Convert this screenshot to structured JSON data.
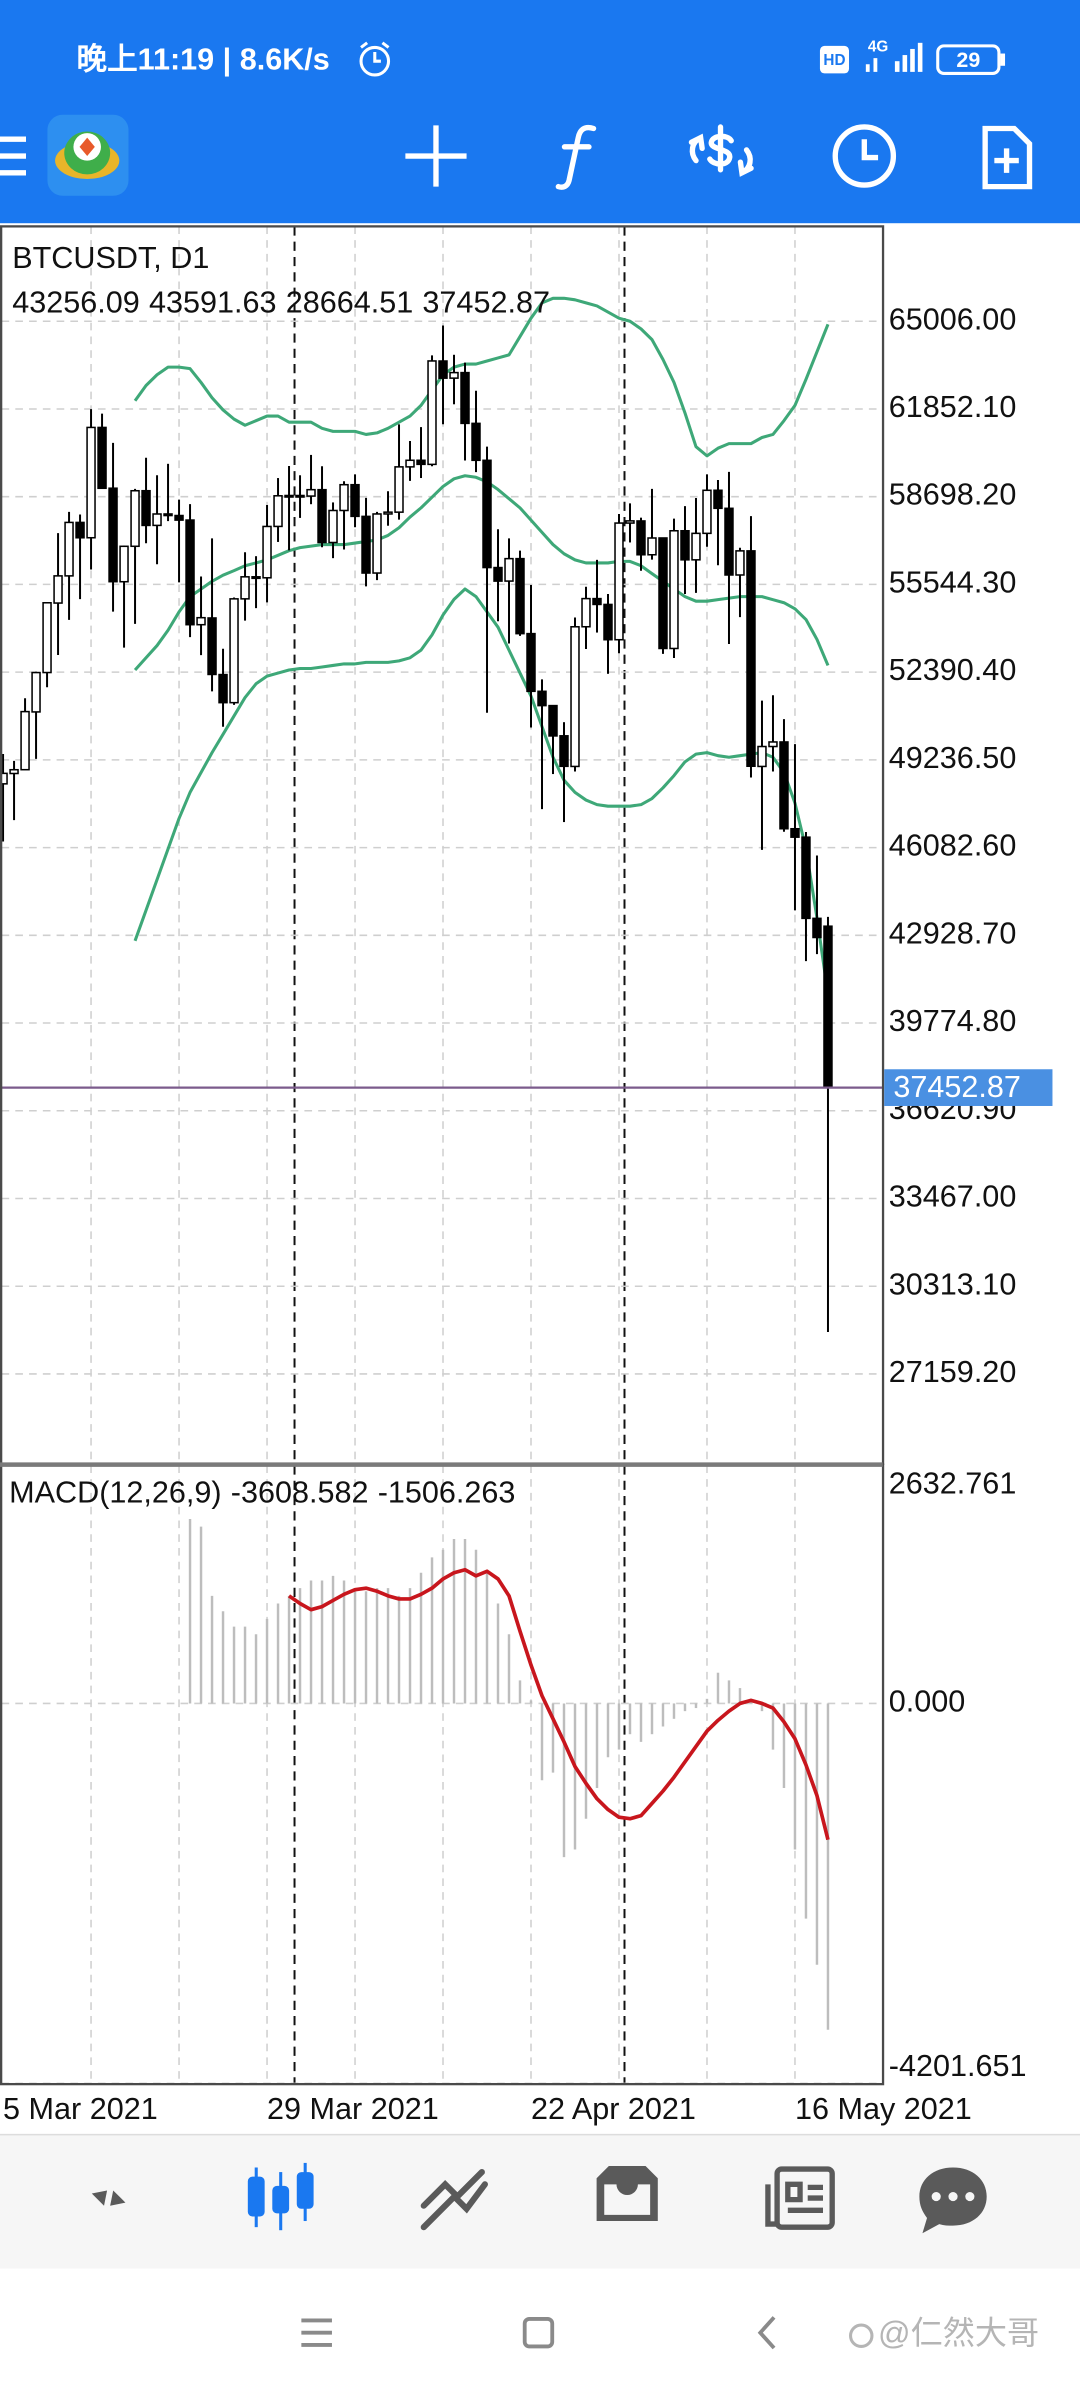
{
  "status_bar": {
    "time_speed": "晚上11:19 | 8.6K/s",
    "hd": "HD",
    "network": "4G",
    "battery": "29"
  },
  "watermark": "@仁然大哥",
  "chart_data": [
    {
      "type": "candlestick",
      "title": "BTCUSDT, D1",
      "categories": [
        "5 Mar 2021",
        null,
        null,
        null,
        null,
        null,
        null,
        null,
        null,
        null,
        null,
        null,
        null,
        null,
        null,
        null,
        null,
        null,
        null,
        null,
        null,
        null,
        null,
        null,
        "29 Mar 2021",
        null,
        null,
        null,
        null,
        null,
        null,
        null,
        null,
        null,
        null,
        null,
        null,
        null,
        null,
        null,
        null,
        null,
        null,
        null,
        null,
        null,
        null,
        null,
        "22 Apr 2021",
        null,
        null,
        null,
        null,
        null,
        null,
        null,
        null,
        null,
        null,
        null,
        null,
        null,
        null,
        null,
        null,
        null,
        null,
        null,
        null,
        null,
        null,
        null,
        "16 May 2021",
        null,
        null,
        null
      ],
      "open": [
        48374,
        48746,
        48883,
        50960,
        52376,
        54874,
        55851,
        57773,
        57222,
        61188,
        59003,
        55641,
        56915,
        58913,
        57666,
        58077,
        58021,
        57858,
        54096,
        54338,
        52303,
        51293,
        55025,
        55818,
        55782,
        57629,
        58730,
        58741,
        58720,
        58950,
        57051,
        58202,
        59129,
        57990,
        55953,
        58077,
        58142,
        59770,
        60007,
        59860,
        63576,
        62960,
        63159,
        61334,
        60006,
        56150,
        55664,
        56471,
        53775,
        51701,
        51187,
        50101,
        49000,
        54022,
        55034,
        54824,
        53556,
        57750,
        57826,
        56610,
        57214,
        53241,
        57473,
        56428,
        57380,
        58929,
        58280,
        55883,
        56750,
        49000,
        49716,
        49880,
        46760,
        46457,
        43538,
        43256.09
      ],
      "high": [
        49448,
        49200,
        51450,
        52402,
        54900,
        57387,
        58150,
        58058,
        61844,
        61683,
        60633,
        56938,
        58981,
        60100,
        59468,
        59880,
        58592,
        58430,
        55830,
        57200,
        53230,
        55073,
        56700,
        56559,
        58400,
        59368,
        59800,
        59468,
        60200,
        59791,
        58492,
        59251,
        59500,
        58655,
        58153,
        58894,
        61300,
        60700,
        61200,
        63777,
        64854,
        63800,
        63520,
        62506,
        60499,
        57526,
        57200,
        56757,
        55521,
        52130,
        51200,
        50591,
        54356,
        55460,
        56428,
        55200,
        58075,
        58458,
        57944,
        58981,
        57214,
        57911,
        58360,
        58650,
        59500,
        59300,
        59592,
        56862,
        58000,
        51367,
        51560,
        50700,
        49800,
        46643,
        45800,
        43591.63
      ],
      "low": [
        46300,
        47070,
        48882,
        49274,
        51845,
        53005,
        54269,
        55013,
        56079,
        59000,
        54568,
        53271,
        54124,
        57023,
        56270,
        57820,
        55617,
        53650,
        53000,
        51700,
        50427,
        51214,
        54242,
        54691,
        54900,
        57071,
        56769,
        57935,
        58428,
        56880,
        56488,
        56800,
        57600,
        55473,
        55700,
        57654,
        57872,
        59266,
        59369,
        59791,
        61301,
        62020,
        60000,
        59580,
        50931,
        54221,
        53420,
        53696,
        50400,
        47464,
        48726,
        47000,
        48817,
        53222,
        53813,
        52330,
        53068,
        57052,
        56035,
        56435,
        53046,
        52900,
        55200,
        55241,
        56900,
        56235,
        53400,
        54370,
        48600,
        46000,
        48819,
        46650,
        43825,
        42001,
        42250,
        28664.51
      ],
      "close": [
        48751,
        48882,
        50971,
        52375,
        54884,
        55851,
        57773,
        57221,
        61188,
        59000,
        55642,
        56914,
        58912,
        57665,
        58076,
        58020,
        57856,
        54096,
        54348,
        52307,
        51293,
        55025,
        55817,
        55778,
        57628,
        58730,
        58741,
        58720,
        58950,
        57051,
        58202,
        59129,
        57991,
        55953,
        58077,
        58142,
        59770,
        60007,
        59861,
        63578,
        62959,
        63159,
        61334,
        60006,
        56150,
        55663,
        56471,
        53774,
        51701,
        51187,
        50097,
        49004,
        54021,
        55034,
        54824,
        53556,
        57750,
        57828,
        56610,
        57213,
        53241,
        57473,
        56428,
        57380,
        58928,
        58280,
        55883,
        56750,
        49007,
        49716,
        49880,
        46760,
        46457,
        43538,
        42850,
        37452.87
      ],
      "color_up": "#ffffff",
      "color_down": "#000000",
      "wick_color": "#000000",
      "overlays": [
        {
          "color": "#3ea878",
          "values": [
            null,
            null,
            null,
            null,
            null,
            null,
            null,
            null,
            null,
            null,
            null,
            null,
            62147,
            62696,
            63081,
            63356,
            63356,
            63301,
            62806,
            62256,
            61816,
            61486,
            61266,
            61431,
            61596,
            61596,
            61376,
            61376,
            61376,
            61156,
            61046,
            61046,
            61046,
            60936,
            60991,
            61156,
            61376,
            61596,
            61981,
            62531,
            63081,
            63356,
            63466,
            63466,
            63576,
            63686,
            63796,
            64456,
            65116,
            65666,
            65831,
            65831,
            65776,
            65666,
            65556,
            65336,
            65116,
            65006,
            64731,
            64346,
            63631,
            62806,
            61706,
            60496,
            60166,
            60441,
            60606,
            60606,
            60606,
            60826,
            60936,
            61431,
            61981,
            62916,
            63906,
            64896
          ]
        },
        {
          "color": "#3ea878",
          "values": [
            null,
            null,
            null,
            null,
            null,
            null,
            null,
            null,
            null,
            null,
            null,
            null,
            52466,
            52906,
            53346,
            53896,
            54556,
            55106,
            55381,
            55656,
            55876,
            56041,
            56216,
            56316,
            56426,
            56591,
            56756,
            56866,
            56921,
            56976,
            56976,
            56976,
            57031,
            57086,
            57141,
            57306,
            57581,
            57966,
            58296,
            58681,
            59066,
            59341,
            59451,
            59396,
            59231,
            58956,
            58626,
            58296,
            57856,
            57416,
            56976,
            56646,
            56426,
            56316,
            56316,
            56316,
            56371,
            56371,
            56216,
            55931,
            55656,
            55381,
            55106,
            54941,
            54941,
            54996,
            55051,
            55106,
            55106,
            55106,
            54996,
            54886,
            54666,
            54281,
            53566,
            52631
          ]
        },
        {
          "color": "#3ea878",
          "values": [
            null,
            null,
            null,
            null,
            null,
            null,
            null,
            null,
            null,
            null,
            null,
            null,
            42731,
            43831,
            44931,
            46031,
            47131,
            48066,
            48781,
            49496,
            50156,
            50816,
            51476,
            51971,
            52246,
            52356,
            52466,
            52521,
            52521,
            52576,
            52631,
            52686,
            52686,
            52741,
            52741,
            52741,
            52796,
            52906,
            53181,
            53731,
            54446,
            55006,
            55381,
            55106,
            54556,
            54006,
            53181,
            52356,
            51531,
            50431,
            49331,
            48506,
            48066,
            47791,
            47626,
            47571,
            47571,
            47571,
            47626,
            47846,
            48231,
            48671,
            49166,
            49441,
            49496,
            49386,
            49331,
            49386,
            49441,
            49496,
            49331,
            48781,
            47681,
            46031,
            43556,
            40806
          ]
        }
      ],
      "last_line_color": "#7b5b8c",
      "last_label_color": "#4a90e2",
      "ylim": [
        23926,
        68416
      ],
      "yticks": [
        {
          "value": 65006,
          "label": "65006.00"
        },
        {
          "value": 61852.1,
          "label": "61852.10"
        },
        {
          "value": 58698.2,
          "label": "58698.20"
        },
        {
          "value": 55544.3,
          "label": "55544.30"
        },
        {
          "value": 52390.4,
          "label": "52390.40"
        },
        {
          "value": 49236.5,
          "label": "49236.50"
        },
        {
          "value": 46082.6,
          "label": "46082.60"
        },
        {
          "value": 42928.7,
          "label": "42928.70"
        },
        {
          "value": 39774.8,
          "label": "39774.80"
        },
        {
          "value": 36620.9,
          "label": "36620.90"
        },
        {
          "value": 33467,
          "label": "33467.00"
        },
        {
          "value": 30313.1,
          "label": "30313.10"
        },
        {
          "value": 27159.2,
          "label": "27159.20"
        }
      ],
      "grid": true
    },
    {
      "type": "macd",
      "title": "MACD(12,26,9)",
      "histogram": {
        "color": "#bdbdbd",
        "values": [
          null,
          null,
          null,
          null,
          null,
          null,
          null,
          null,
          null,
          null,
          null,
          null,
          null,
          null,
          null,
          null,
          null,
          2040,
          1955,
          1190,
          1020,
          850,
          850,
          765,
          935,
          1105,
          1190,
          1275,
          1360,
          1360,
          1411,
          1360,
          1275,
          1241,
          1275,
          1275,
          1190,
          1275,
          1445,
          1615,
          1700,
          1819,
          1819,
          1700,
          1445,
          1105,
          765,
          255,
          34,
          -850,
          -765,
          -1700,
          -1615,
          -1275,
          -935,
          -595,
          -510,
          -340,
          -425,
          -340,
          -255,
          -170,
          -85,
          -51,
          51,
          340,
          255,
          170,
          51,
          -85,
          -510,
          -935,
          -1615,
          -2380,
          -2890,
          -3608.582
        ]
      },
      "signal": {
        "color": "#c8161d",
        "values": [
          null,
          null,
          null,
          null,
          null,
          null,
          null,
          null,
          null,
          null,
          null,
          null,
          null,
          null,
          null,
          null,
          null,
          null,
          null,
          null,
          null,
          null,
          null,
          null,
          null,
          null,
          1190,
          1105,
          1037,
          1071,
          1139,
          1207,
          1258,
          1275,
          1241,
          1190,
          1156,
          1156,
          1207,
          1275,
          1377,
          1445,
          1479,
          1411,
          1462,
          1377,
          1190,
          799,
          425,
          85,
          -170,
          -425,
          -697,
          -884,
          -1054,
          -1173,
          -1258,
          -1275,
          -1241,
          -1105,
          -969,
          -816,
          -646,
          -476,
          -306,
          -187,
          -85,
          0,
          34,
          0,
          -51,
          -204,
          -391,
          -680,
          -1020,
          -1506.263
        ]
      },
      "ylim": [
        -4201.651,
        2632.761
      ],
      "yticks": [
        2632.761,
        {
          "value": 0,
          "label": "0.000"
        },
        -4201.651
      ],
      "grid": true
    }
  ]
}
